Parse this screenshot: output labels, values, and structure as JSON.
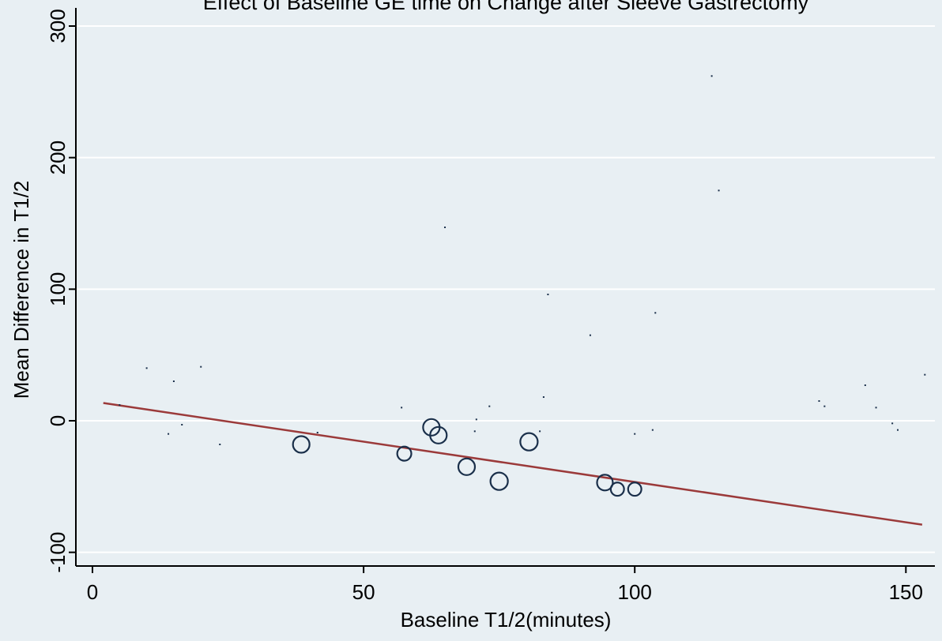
{
  "chart_data": {
    "type": "scatter",
    "title": "Effect of Baseline GE time on Change after Sleeve Gastrectomy",
    "xlabel": "Baseline T1/2(minutes)",
    "ylabel": "Mean Difference in T1/2",
    "xlim": [
      -2,
      156
    ],
    "ylim": [
      -110,
      310
    ],
    "x_ticks": [
      0,
      50,
      100,
      150
    ],
    "x_tick_labels": [
      "0",
      "50",
      "100",
      "150"
    ],
    "y_ticks": [
      -100,
      0,
      100,
      200,
      300
    ],
    "y_tick_labels": [
      "-100",
      "0",
      "100",
      "200",
      "300"
    ],
    "grid": "horizontal",
    "legend": "none",
    "colors": {
      "background": "#e8eff3",
      "plot_area": "#e8eff3",
      "grid": "#ffffff",
      "circle": "#1a2f4a",
      "point": "#1a2f4a",
      "fit_line": "#9b3a3a"
    },
    "series": [
      {
        "marker": "hollow-circle-weighted",
        "points": [
          {
            "x": 38.5,
            "y": -18,
            "weight": 1.0
          },
          {
            "x": 57.5,
            "y": -25,
            "weight": 0.85
          },
          {
            "x": 62.5,
            "y": -5,
            "weight": 1.0
          },
          {
            "x": 63.8,
            "y": -11,
            "weight": 1.0
          },
          {
            "x": 69.0,
            "y": -35,
            "weight": 1.0
          },
          {
            "x": 75.0,
            "y": -46,
            "weight": 1.05
          },
          {
            "x": 80.5,
            "y": -16,
            "weight": 1.05
          },
          {
            "x": 94.5,
            "y": -47,
            "weight": 0.95
          },
          {
            "x": 96.8,
            "y": -52,
            "weight": 0.8
          },
          {
            "x": 100.0,
            "y": -52,
            "weight": 0.8
          }
        ]
      },
      {
        "marker": "dot",
        "points": [
          {
            "x": 5,
            "y": 12
          },
          {
            "x": 10,
            "y": 40
          },
          {
            "x": 14,
            "y": -10
          },
          {
            "x": 15,
            "y": 30
          },
          {
            "x": 16.5,
            "y": -3
          },
          {
            "x": 20,
            "y": 41
          },
          {
            "x": 23.5,
            "y": -18
          },
          {
            "x": 41.5,
            "y": -9
          },
          {
            "x": 57,
            "y": 10
          },
          {
            "x": 65,
            "y": 147
          },
          {
            "x": 70.5,
            "y": -8
          },
          {
            "x": 70.8,
            "y": 1
          },
          {
            "x": 73.2,
            "y": 11
          },
          {
            "x": 82.5,
            "y": -8
          },
          {
            "x": 83.2,
            "y": 18
          },
          {
            "x": 84,
            "y": 96
          },
          {
            "x": 91.8,
            "y": 65
          },
          {
            "x": 100,
            "y": -10
          },
          {
            "x": 103.3,
            "y": -7
          },
          {
            "x": 103.8,
            "y": 82
          },
          {
            "x": 114.2,
            "y": 262
          },
          {
            "x": 115.5,
            "y": 175
          },
          {
            "x": 134,
            "y": 15
          },
          {
            "x": 135,
            "y": 11
          },
          {
            "x": 142.5,
            "y": 27
          },
          {
            "x": 144.5,
            "y": 10
          },
          {
            "x": 147.5,
            "y": -2
          },
          {
            "x": 148.5,
            "y": -7
          },
          {
            "x": 153.5,
            "y": 35
          }
        ]
      }
    ],
    "fit_line": {
      "x": [
        2,
        153
      ],
      "y": [
        13.5,
        -79
      ]
    }
  }
}
